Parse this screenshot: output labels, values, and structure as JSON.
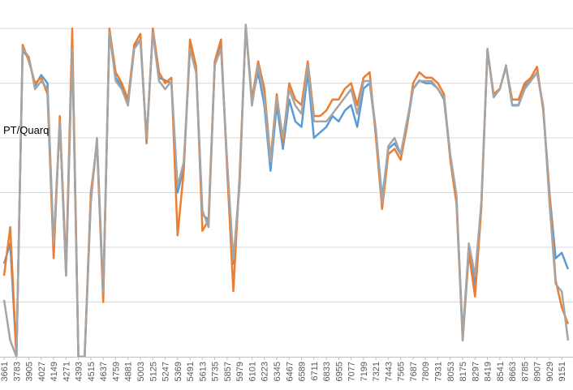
{
  "chart_data": {
    "type": "line",
    "annotation": "PT/Quarq",
    "x": [
      3661,
      3722,
      3783,
      3844,
      3905,
      3966,
      4027,
      4088,
      4149,
      4210,
      4271,
      4332,
      4393,
      4454,
      4515,
      4576,
      4637,
      4698,
      4759,
      4820,
      4881,
      4942,
      5003,
      5064,
      5125,
      5186,
      5247,
      5308,
      5369,
      5430,
      5491,
      5552,
      5613,
      5674,
      5735,
      5796,
      5857,
      5918,
      5979,
      6040,
      6101,
      6162,
      6223,
      6284,
      6345,
      6406,
      6467,
      6528,
      6589,
      6650,
      6711,
      6772,
      6833,
      6894,
      6955,
      7016,
      7077,
      7138,
      7199,
      7260,
      7321,
      7382,
      7443,
      7504,
      7565,
      7626,
      7687,
      7748,
      7809,
      7870,
      7931,
      7992,
      8053,
      8114,
      8175,
      8236,
      8297,
      8358,
      8419,
      8480,
      8541,
      8602,
      8663,
      8724,
      8785,
      8846,
      8907,
      8968,
      9029,
      9090,
      9151,
      9212
    ],
    "series": [
      {
        "color": "#5b9bd5",
        "values": [
          170,
          207,
          0,
          560,
          545,
          495,
          515,
          500,
          200,
          430,
          150,
          580,
          0,
          0,
          290,
          395,
          110,
          595,
          510,
          495,
          465,
          565,
          580,
          395,
          595,
          510,
          505,
          500,
          300,
          345,
          565,
          525,
          260,
          250,
          535,
          570,
          350,
          170,
          320,
          605,
          470,
          520,
          460,
          340,
          460,
          380,
          470,
          430,
          420,
          520,
          400,
          410,
          420,
          440,
          430,
          450,
          460,
          420,
          490,
          500,
          410,
          290,
          380,
          390,
          370,
          420,
          490,
          505,
          500,
          500,
          490,
          470,
          365,
          290,
          40,
          200,
          130,
          275,
          560,
          475,
          490,
          530,
          460,
          460,
          495,
          505,
          520,
          455,
          300,
          180,
          190,
          160
        ]
      },
      {
        "color": "#ed7d31",
        "values": [
          148,
          237,
          0,
          570,
          540,
          500,
          510,
          480,
          180,
          440,
          160,
          600,
          0,
          0,
          300,
          390,
          100,
          600,
          520,
          500,
          470,
          570,
          590,
          390,
          600,
          520,
          500,
          510,
          222,
          340,
          580,
          530,
          230,
          250,
          540,
          580,
          340,
          120,
          330,
          600,
          470,
          540,
          490,
          360,
          480,
          390,
          500,
          470,
          460,
          540,
          440,
          440,
          450,
          470,
          470,
          490,
          500,
          460,
          510,
          520,
          400,
          270,
          370,
          380,
          360,
          420,
          500,
          520,
          510,
          510,
          500,
          480,
          360,
          280,
          30,
          190,
          110,
          270,
          560,
          480,
          490,
          530,
          470,
          470,
          500,
          510,
          530,
          450,
          300,
          140,
          90,
          60
        ]
      },
      {
        "color": "#a5a5a5",
        "values": [
          104,
          30,
          0,
          563,
          548,
          489,
          504,
          489,
          207,
          430,
          148,
          563,
          0,
          0,
          281,
          400,
          119,
          593,
          504,
          489,
          459,
          563,
          578,
          400,
          593,
          504,
          489,
          504,
          311,
          356,
          563,
          519,
          267,
          237,
          533,
          563,
          356,
          178,
          311,
          607,
          459,
          533,
          474,
          356,
          474,
          400,
          489,
          459,
          444,
          533,
          430,
          430,
          430,
          444,
          459,
          474,
          489,
          444,
          504,
          504,
          415,
          281,
          385,
          400,
          370,
          430,
          489,
          504,
          504,
          504,
          489,
          474,
          370,
          296,
          30,
          207,
          148,
          281,
          563,
          474,
          489,
          533,
          459,
          459,
          489,
          504,
          519,
          459,
          281,
          133,
          119,
          30
        ]
      }
    ],
    "xlim": [
      3621,
      9261
    ],
    "xticks": [
      3661,
      3783,
      3905,
      4027,
      4149,
      4271,
      4393,
      4515,
      4637,
      4759,
      4881,
      5003,
      5125,
      5247,
      5369,
      5491,
      5613,
      5735,
      5857,
      5979,
      6101,
      6223,
      6345,
      6467,
      6589,
      6711,
      6833,
      6955,
      7077,
      7199,
      7321,
      7443,
      7565,
      7687,
      7809,
      7931,
      8053,
      8175,
      8297,
      8419,
      8541,
      8663,
      8785,
      8907,
      9029,
      9151
    ],
    "ylim": [
      0,
      652
    ],
    "ygrid": [
      100,
      200,
      300,
      400,
      500,
      600
    ]
  }
}
